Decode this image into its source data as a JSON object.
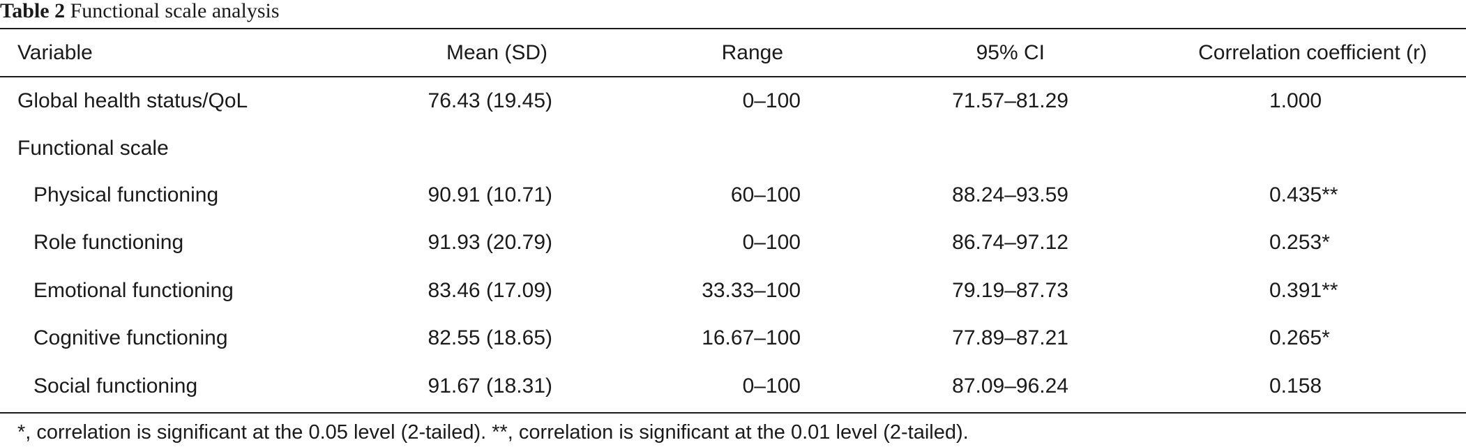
{
  "caption": {
    "label": "Table 2",
    "title": "Functional scale analysis"
  },
  "headers": {
    "variable": "Variable",
    "mean": "Mean (SD)",
    "range": "Range",
    "ci": "95% CI",
    "corr": "Correlation coefficient (r)"
  },
  "rows": [
    {
      "variable": "Global health status/QoL",
      "mean": "76.43 (19.45)",
      "range": "0–100",
      "ci": "71.57–81.29",
      "corr": "1.000"
    },
    {
      "variable": "Functional scale",
      "mean": "",
      "range": "",
      "ci": "",
      "corr": ""
    },
    {
      "variable": "Physical functioning",
      "mean": "90.91 (10.71)",
      "range": "60–100",
      "ci": "88.24–93.59",
      "corr": "0.435**"
    },
    {
      "variable": "Role functioning",
      "mean": "91.93 (20.79)",
      "range": "0–100",
      "ci": "86.74–97.12",
      "corr": "0.253*"
    },
    {
      "variable": "Emotional functioning",
      "mean": "83.46 (17.09)",
      "range": "33.33–100",
      "ci": "79.19–87.73",
      "corr": "0.391**"
    },
    {
      "variable": "Cognitive functioning",
      "mean": "82.55 (18.65)",
      "range": "16.67–100",
      "ci": "77.89–87.21",
      "corr": "0.265*"
    },
    {
      "variable": "Social functioning",
      "mean": "91.67 (18.31)",
      "range": "0–100",
      "ci": "87.09–96.24",
      "corr": "0.158"
    }
  ],
  "footnote": "*, correlation is significant at the 0.05 level (2-tailed). **, correlation is significant at the 0.01 level (2-tailed)."
}
